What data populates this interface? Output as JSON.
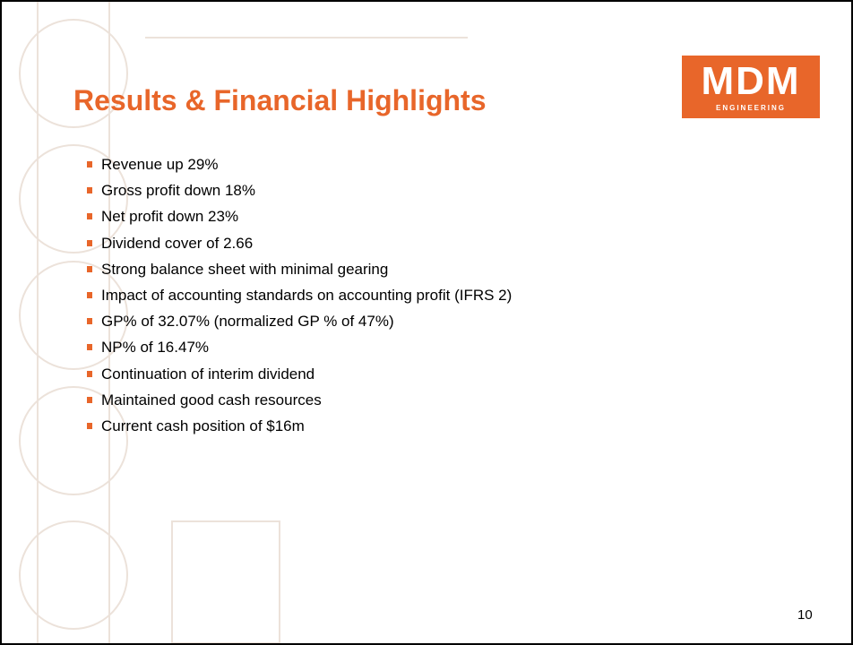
{
  "title": "Results & Financial Highlights",
  "logo": {
    "name": "MDM",
    "subtitle": "ENGINEERING"
  },
  "bullets": [
    "Revenue up 29%",
    "Gross profit down 18%",
    "Net profit down 23%",
    "Dividend cover of 2.66",
    "Strong balance sheet with minimal gearing",
    "Impact of accounting standards on accounting profit (IFRS 2)",
    "GP% of 32.07% (normalized GP % of 47%)",
    "NP% of 16.47%",
    "Continuation of interim dividend",
    "Maintained good cash resources",
    "Current cash position of $16m"
  ],
  "page_number": "10"
}
